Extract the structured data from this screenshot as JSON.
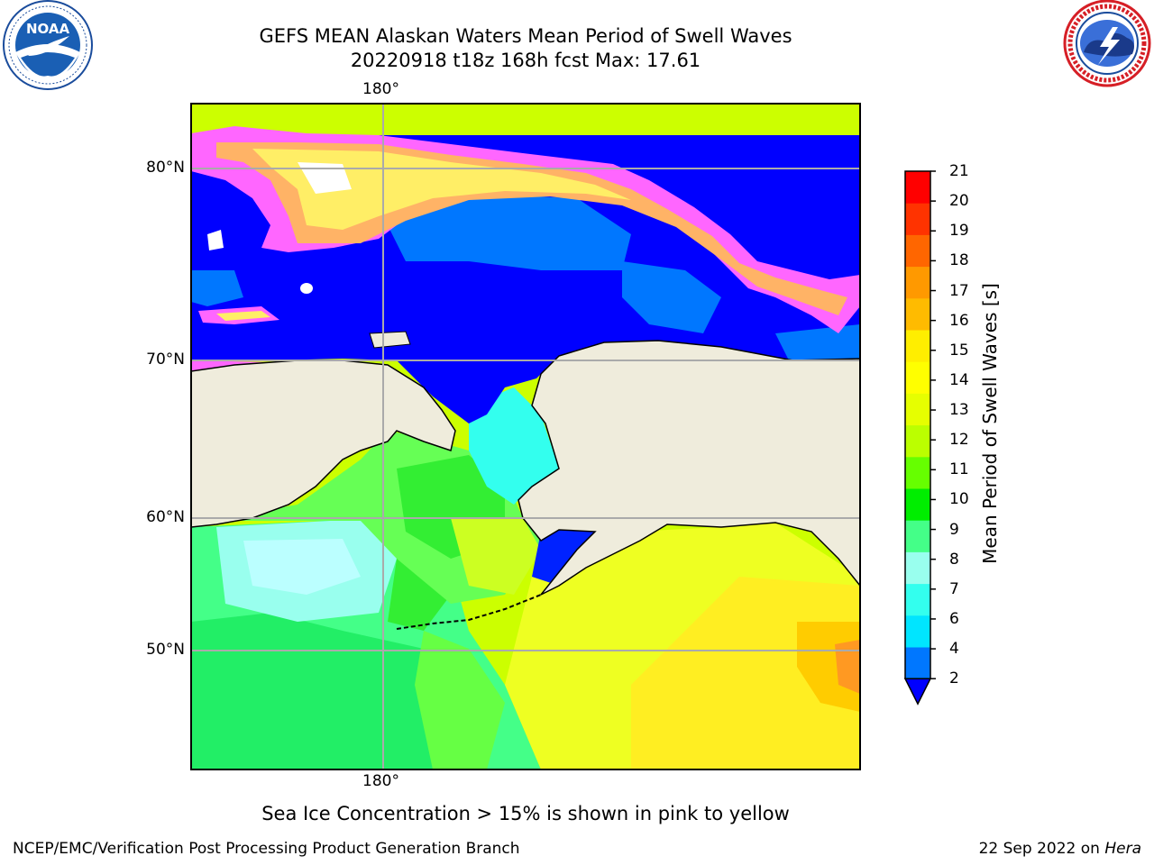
{
  "title": {
    "line1": "GEFS MEAN Alaskan Waters Mean Period of Swell Waves",
    "line2": "20220918 t18z 168h fcst   Max: 17.61"
  },
  "logos": {
    "left": {
      "name": "NOAA",
      "text": "NOAA",
      "ring_text": "NATIONAL OCEANIC AND ATMOSPHERIC ADMINISTRATION · U.S. DEPARTMENT OF COMMERCE"
    },
    "right": {
      "name": "National Weather Service",
      "ring_text": "NATIONAL WEATHER SERVICE"
    }
  },
  "map": {
    "lon_label_top": "180°",
    "lon_label_bottom": "180°",
    "lat_labels": [
      "80°N",
      "70°N",
      "60°N",
      "50°N"
    ],
    "colors": {
      "land": "#efecdc",
      "ice_free_deep": "#0000ff",
      "ice_pink": "#ff66ff",
      "ice_yellow": "#ffe066"
    }
  },
  "colorbar": {
    "label": "Mean Period of Swell Waves [s]",
    "ticks": [
      "2",
      "4",
      "6",
      "7",
      "8",
      "9",
      "10",
      "11",
      "12",
      "13",
      "14",
      "15",
      "16",
      "17",
      "18",
      "19",
      "20",
      "21"
    ],
    "colors": [
      "#0077ff",
      "#00e5ff",
      "#33ffee",
      "#99ffee",
      "#44ff88",
      "#00ee00",
      "#66ff00",
      "#bbff00",
      "#e6ff00",
      "#ffff00",
      "#ffee00",
      "#ffbb00",
      "#ff9900",
      "#ff6600",
      "#ff3300",
      "#ff0000"
    ],
    "extend_color": "#0000ff"
  },
  "caption": "Sea Ice Concentration > 15% is shown in pink to yellow",
  "footer": {
    "left": "NCEP/EMC/Verification Post Processing Product Generation Branch",
    "right_date": "22 Sep 2022 on ",
    "right_machine": "Hera"
  }
}
